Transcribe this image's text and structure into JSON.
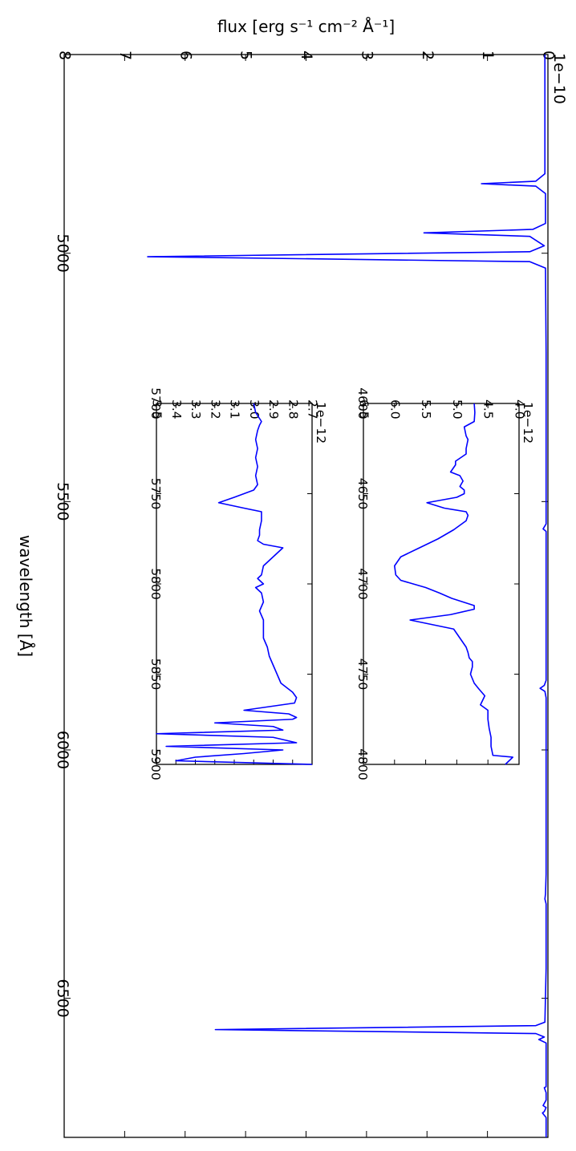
{
  "chart_data": [
    {
      "type": "line",
      "orientation": "rotated-90-clockwise",
      "xlabel": "wavelength [Å]",
      "ylabel": "flux [erg s⁻¹ cm⁻² Å⁻¹]",
      "y_offset_label": "1e−10",
      "xlim": [
        4600,
        6780
      ],
      "ylim": [
        0,
        8
      ],
      "x_ticks": [
        5000,
        5500,
        6000,
        6500
      ],
      "y_ticks": [
        0,
        1,
        2,
        3,
        4,
        5,
        6,
        7,
        8
      ],
      "series": [
        {
          "color": "#0000ff",
          "x": [
            4600,
            4650,
            4700,
            4750,
            4800,
            4840,
            4855,
            4860,
            4865,
            4880,
            4940,
            4952,
            4959,
            4966,
            4985,
            4997,
            5007,
            5017,
            5030,
            5200,
            5400,
            5500,
            5525,
            5545,
            5555,
            5560,
            5600,
            5800,
            5860,
            5870,
            5876,
            5882,
            5895,
            6000,
            6250,
            6290,
            6300,
            6310,
            6364,
            6440,
            6548,
            6555,
            6563,
            6571,
            6578,
            6583,
            6590,
            6678,
            6680,
            6690,
            6705,
            6716,
            6720,
            6728,
            6731,
            6740,
            6780
          ],
          "y": [
            0.05,
            0.05,
            0.05,
            0.05,
            0.05,
            0.05,
            0.2,
            1.1,
            0.2,
            0.04,
            0.04,
            0.25,
            2.05,
            0.3,
            0.06,
            0.3,
            6.62,
            0.3,
            0.04,
            0.03,
            0.03,
            0.03,
            0.03,
            0.03,
            0.08,
            0.03,
            0.03,
            0.03,
            0.03,
            0.06,
            0.13,
            0.05,
            0.03,
            0.03,
            0.03,
            0.04,
            0.05,
            0.03,
            0.03,
            0.03,
            0.05,
            0.2,
            5.5,
            0.2,
            0.06,
            0.15,
            0.03,
            0.03,
            0.06,
            0.03,
            0.03,
            0.08,
            0.03,
            0.06,
            0.09,
            0.03,
            0.03
          ]
        }
      ]
    },
    {
      "type": "line",
      "orientation": "rotated-90-clockwise",
      "y_offset_label": "1e−12",
      "xlim": [
        4600,
        4800
      ],
      "ylim": [
        4.0,
        6.5
      ],
      "x_ticks": [
        4600,
        4650,
        4700,
        4750,
        4800
      ],
      "y_ticks": [
        4.0,
        4.5,
        5.0,
        5.5,
        6.0,
        6.5
      ],
      "series": [
        {
          "color": "#0000ff",
          "x": [
            4600,
            4605,
            4610,
            4613,
            4618,
            4620,
            4625,
            4628,
            4632,
            4634,
            4638,
            4640,
            4643,
            4646,
            4648,
            4650,
            4652,
            4655,
            4658,
            4660,
            4662,
            4665,
            4670,
            4675,
            4680,
            4685,
            4690,
            4695,
            4698,
            4700,
            4702,
            4705,
            4708,
            4710,
            4712,
            4714,
            4717,
            4720,
            4725,
            4730,
            4735,
            4738,
            4741,
            4743,
            4746,
            4750,
            4755,
            4758,
            4762,
            4767,
            4770,
            4775,
            4780,
            4785,
            4790,
            4795,
            4796,
            4800
          ],
          "y": [
            4.72,
            4.71,
            4.72,
            4.88,
            4.85,
            4.82,
            4.85,
            4.85,
            5.02,
            5.02,
            5.1,
            4.95,
            4.9,
            4.95,
            4.88,
            4.88,
            5.0,
            5.48,
            5.2,
            4.85,
            4.82,
            4.85,
            5.05,
            5.3,
            5.6,
            5.9,
            6.0,
            5.98,
            5.9,
            5.7,
            5.5,
            5.28,
            5.08,
            4.9,
            4.72,
            4.72,
            5.1,
            5.75,
            5.05,
            4.95,
            4.85,
            4.82,
            4.8,
            4.75,
            4.75,
            4.78,
            4.72,
            4.65,
            4.55,
            4.62,
            4.5,
            4.5,
            4.48,
            4.45,
            4.45,
            4.42,
            4.1,
            4.22
          ]
        }
      ]
    },
    {
      "type": "line",
      "orientation": "rotated-90-clockwise",
      "y_offset_label": "1e−12",
      "xlim": [
        5700,
        5900
      ],
      "ylim": [
        2.7,
        3.5
      ],
      "x_ticks": [
        5700,
        5750,
        5800,
        5850,
        5900
      ],
      "y_ticks": [
        2.7,
        2.8,
        2.9,
        3.0,
        3.1,
        3.2,
        3.3,
        3.4,
        3.5
      ],
      "series": [
        {
          "color": "#0000ff",
          "x": [
            5700,
            5705,
            5710,
            5712,
            5715,
            5720,
            5725,
            5730,
            5735,
            5740,
            5745,
            5748,
            5752,
            5755,
            5758,
            5760,
            5765,
            5770,
            5773,
            5776,
            5778,
            5780,
            5783,
            5786,
            5790,
            5795,
            5797,
            5800,
            5802,
            5805,
            5810,
            5815,
            5820,
            5825,
            5830,
            5835,
            5840,
            5845,
            5850,
            5855,
            5860,
            5863,
            5866,
            5870,
            5872,
            5874,
            5875,
            5877,
            5879,
            5881,
            5883,
            5885,
            5888,
            5890,
            5892,
            5894,
            5896,
            5898,
            5900
          ],
          "y": [
            3.0,
            2.99,
            2.96,
            2.97,
            2.98,
            2.99,
            2.98,
            2.99,
            2.98,
            2.99,
            2.98,
            3.0,
            3.1,
            3.18,
            3.05,
            2.96,
            2.96,
            2.97,
            2.97,
            2.98,
            2.95,
            2.85,
            2.88,
            2.91,
            2.95,
            2.96,
            2.98,
            2.95,
            2.99,
            2.96,
            2.95,
            2.97,
            2.95,
            2.95,
            2.95,
            2.93,
            2.92,
            2.9,
            2.88,
            2.86,
            2.8,
            2.78,
            2.79,
            3.05,
            2.82,
            2.78,
            2.8,
            3.2,
            2.9,
            2.85,
            3.5,
            2.9,
            2.78,
            3.45,
            2.85,
            3.05,
            3.3,
            3.4,
            2.7
          ]
        }
      ]
    }
  ]
}
